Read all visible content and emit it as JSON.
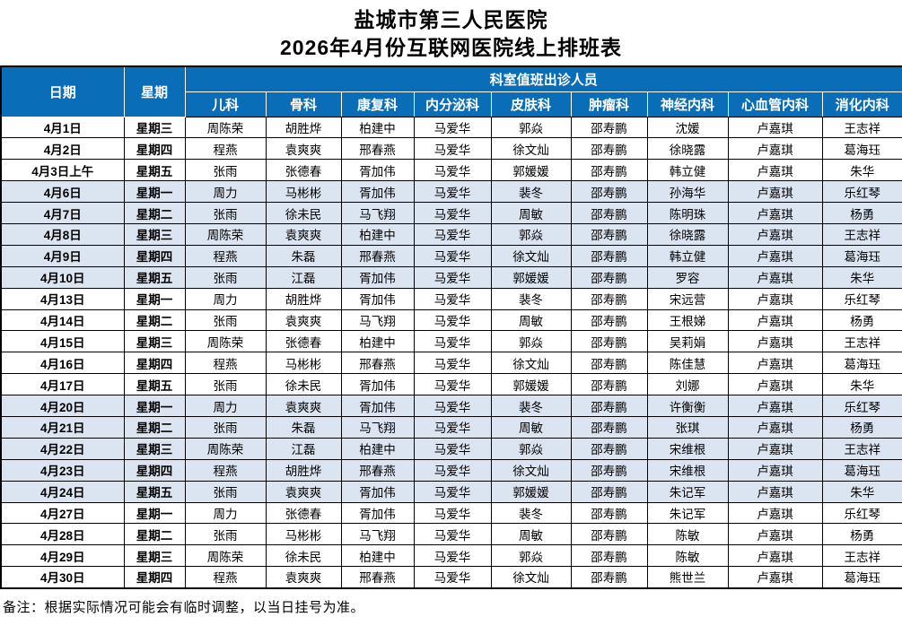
{
  "page": {
    "title": "盐城市第三人民医院",
    "subtitle": "2026年4月份互联网医院线上排班表",
    "note": "备注：根据实际情况可能会有临时调整，以当日挂号为准。"
  },
  "colors": {
    "header_bg": "#0a6db8",
    "stripe_bg": "#dbe5f1",
    "header_text": "#ffffff"
  },
  "table": {
    "header": {
      "date": "日期",
      "weekday": "星期",
      "group": "科室值班出诊人员",
      "departments": [
        "儿科",
        "骨科",
        "康复科",
        "内分泌科",
        "皮肤科",
        "肿瘤科",
        "神经内科",
        "心血管内科",
        "消化内科"
      ]
    },
    "rows": [
      {
        "date": "4月1日",
        "weekday": "星期三",
        "staff": [
          "周陈荣",
          "胡胜烨",
          "柏建中",
          "马爱华",
          "郭焱",
          "邵寿鹏",
          "沈媛",
          "卢嘉琪",
          "王志祥"
        ],
        "shaded": false
      },
      {
        "date": "4月2日",
        "weekday": "星期四",
        "staff": [
          "程燕",
          "袁爽爽",
          "邢春燕",
          "马爱华",
          "徐文灿",
          "邵寿鹏",
          "徐晓露",
          "卢嘉琪",
          "葛海珏"
        ],
        "shaded": false
      },
      {
        "date": "4月3日上午",
        "weekday": "星期五",
        "staff": [
          "张雨",
          "张德春",
          "胥加伟",
          "马爱华",
          "郭媛媛",
          "邵寿鹏",
          "韩立健",
          "卢嘉琪",
          "朱华"
        ],
        "shaded": false
      },
      {
        "date": "4月6日",
        "weekday": "星期一",
        "staff": [
          "周力",
          "马彬彬",
          "胥加伟",
          "马爱华",
          "裴冬",
          "邵寿鹏",
          "孙海华",
          "卢嘉琪",
          "乐红琴"
        ],
        "shaded": true
      },
      {
        "date": "4月7日",
        "weekday": "星期二",
        "staff": [
          "张雨",
          "徐未民",
          "马飞翔",
          "马爱华",
          "周敏",
          "邵寿鹏",
          "陈明珠",
          "卢嘉琪",
          "杨勇"
        ],
        "shaded": true
      },
      {
        "date": "4月8日",
        "weekday": "星期三",
        "staff": [
          "周陈荣",
          "袁爽爽",
          "柏建中",
          "马爱华",
          "郭焱",
          "邵寿鹏",
          "徐晓露",
          "卢嘉琪",
          "王志祥"
        ],
        "shaded": true
      },
      {
        "date": "4月9日",
        "weekday": "星期四",
        "staff": [
          "程燕",
          "朱磊",
          "邢春燕",
          "马爱华",
          "徐文灿",
          "邵寿鹏",
          "韩立健",
          "卢嘉琪",
          "葛海珏"
        ],
        "shaded": true
      },
      {
        "date": "4月10日",
        "weekday": "星期五",
        "staff": [
          "张雨",
          "江磊",
          "胥加伟",
          "马爱华",
          "郭媛媛",
          "邵寿鹏",
          "罗容",
          "卢嘉琪",
          "朱华"
        ],
        "shaded": true
      },
      {
        "date": "4月13日",
        "weekday": "星期一",
        "staff": [
          "周力",
          "胡胜烨",
          "胥加伟",
          "马爱华",
          "裴冬",
          "邵寿鹏",
          "宋远营",
          "卢嘉琪",
          "乐红琴"
        ],
        "shaded": false
      },
      {
        "date": "4月14日",
        "weekday": "星期二",
        "staff": [
          "张雨",
          "袁爽爽",
          "马飞翔",
          "马爱华",
          "周敏",
          "邵寿鹏",
          "王根娣",
          "卢嘉琪",
          "杨勇"
        ],
        "shaded": false
      },
      {
        "date": "4月15日",
        "weekday": "星期三",
        "staff": [
          "周陈荣",
          "张德春",
          "柏建中",
          "马爱华",
          "郭焱",
          "邵寿鹏",
          "吴莉娟",
          "卢嘉琪",
          "王志祥"
        ],
        "shaded": false
      },
      {
        "date": "4月16日",
        "weekday": "星期四",
        "staff": [
          "程燕",
          "马彬彬",
          "邢春燕",
          "马爱华",
          "徐文灿",
          "邵寿鹏",
          "陈佳慧",
          "卢嘉琪",
          "葛海珏"
        ],
        "shaded": false
      },
      {
        "date": "4月17日",
        "weekday": "星期五",
        "staff": [
          "张雨",
          "徐未民",
          "胥加伟",
          "马爱华",
          "郭媛媛",
          "邵寿鹏",
          "刘娜",
          "卢嘉琪",
          "朱华"
        ],
        "shaded": false
      },
      {
        "date": "4月20日",
        "weekday": "星期一",
        "staff": [
          "周力",
          "袁爽爽",
          "胥加伟",
          "马爱华",
          "裴冬",
          "邵寿鹏",
          "许衡衡",
          "卢嘉琪",
          "乐红琴"
        ],
        "shaded": true
      },
      {
        "date": "4月21日",
        "weekday": "星期二",
        "staff": [
          "张雨",
          "朱磊",
          "马飞翔",
          "马爱华",
          "周敏",
          "邵寿鹏",
          "张琪",
          "卢嘉琪",
          "杨勇"
        ],
        "shaded": true
      },
      {
        "date": "4月22日",
        "weekday": "星期三",
        "staff": [
          "周陈荣",
          "江磊",
          "柏建中",
          "马爱华",
          "郭焱",
          "邵寿鹏",
          "宋维根",
          "卢嘉琪",
          "王志祥"
        ],
        "shaded": true
      },
      {
        "date": "4月23日",
        "weekday": "星期四",
        "staff": [
          "程燕",
          "胡胜烨",
          "邢春燕",
          "马爱华",
          "徐文灿",
          "邵寿鹏",
          "宋维根",
          "卢嘉琪",
          "葛海珏"
        ],
        "shaded": true
      },
      {
        "date": "4月24日",
        "weekday": "星期五",
        "staff": [
          "张雨",
          "袁爽爽",
          "胥加伟",
          "马爱华",
          "郭媛媛",
          "邵寿鹏",
          "朱记军",
          "卢嘉琪",
          "朱华"
        ],
        "shaded": true
      },
      {
        "date": "4月27日",
        "weekday": "星期一",
        "staff": [
          "周力",
          "张德春",
          "胥加伟",
          "马爱华",
          "裴冬",
          "邵寿鹏",
          "朱记军",
          "卢嘉琪",
          "乐红琴"
        ],
        "shaded": false
      },
      {
        "date": "4月28日",
        "weekday": "星期二",
        "staff": [
          "张雨",
          "马彬彬",
          "马飞翔",
          "马爱华",
          "周敏",
          "邵寿鹏",
          "陈敏",
          "卢嘉琪",
          "杨勇"
        ],
        "shaded": false
      },
      {
        "date": "4月29日",
        "weekday": "星期三",
        "staff": [
          "周陈荣",
          "徐未民",
          "柏建中",
          "马爱华",
          "郭焱",
          "邵寿鹏",
          "陈敏",
          "卢嘉琪",
          "王志祥"
        ],
        "shaded": false
      },
      {
        "date": "4月30日",
        "weekday": "星期四",
        "staff": [
          "程燕",
          "袁爽爽",
          "邢春燕",
          "马爱华",
          "徐文灿",
          "邵寿鹏",
          "熊世兰",
          "卢嘉琪",
          "葛海珏"
        ],
        "shaded": false
      }
    ]
  }
}
